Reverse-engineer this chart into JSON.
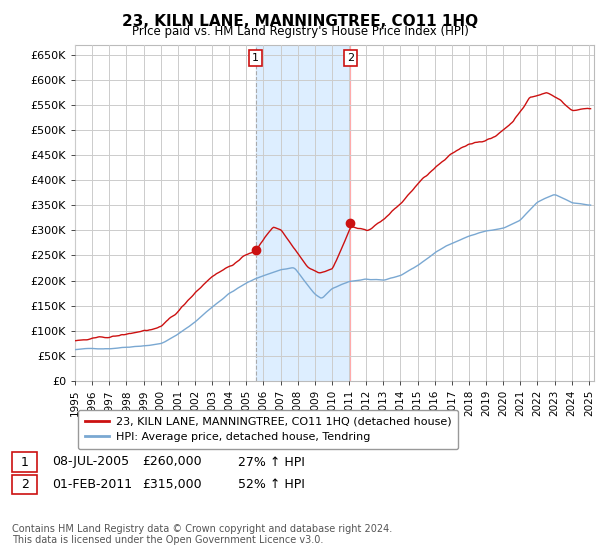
{
  "title": "23, KILN LANE, MANNINGTREE, CO11 1HQ",
  "subtitle": "Price paid vs. HM Land Registry's House Price Index (HPI)",
  "ylabel_ticks": [
    "£0",
    "£50K",
    "£100K",
    "£150K",
    "£200K",
    "£250K",
    "£300K",
    "£350K",
    "£400K",
    "£450K",
    "£500K",
    "£550K",
    "£600K",
    "£650K"
  ],
  "ytick_values": [
    0,
    50000,
    100000,
    150000,
    200000,
    250000,
    300000,
    350000,
    400000,
    450000,
    500000,
    550000,
    600000,
    650000
  ],
  "ylim": [
    0,
    670000
  ],
  "xlim_start": 1995.0,
  "xlim_end": 2025.3,
  "hpi_color": "#7aa8d2",
  "price_color": "#cc1111",
  "marker1_date": 2005.54,
  "marker1_price": 260000,
  "marker2_date": 2011.08,
  "marker2_price": 315000,
  "legend_line1": "23, KILN LANE, MANNINGTREE, CO11 1HQ (detached house)",
  "legend_line2": "HPI: Average price, detached house, Tendring",
  "footer": "Contains HM Land Registry data © Crown copyright and database right 2024.\nThis data is licensed under the Open Government Licence v3.0.",
  "bg_color": "#ffffff",
  "plot_bg_color": "#ffffff",
  "grid_color": "#cccccc",
  "marker_box_color": "#cc1111",
  "span_color": "#ddeeff",
  "vline1_color": "#aaaaaa",
  "vline2_color": "#ffaaaa"
}
